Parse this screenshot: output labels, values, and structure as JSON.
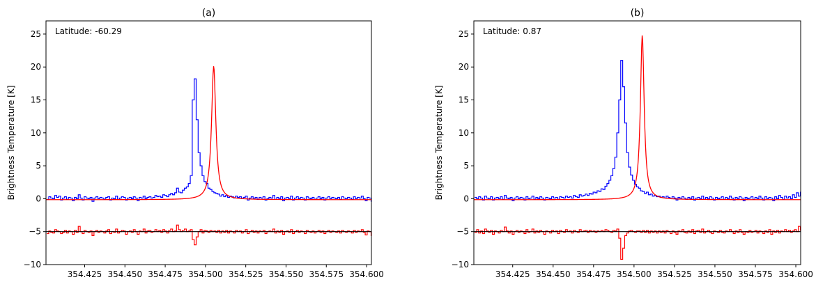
{
  "chart_data": [
    {
      "type": "line",
      "title": "(a)",
      "ylabel": "Brightness Temperature [K]",
      "xlabel": "",
      "annotation": "Latitude: -60.29",
      "xlim": [
        354.401,
        354.603
      ],
      "ylim": [
        -10,
        27
      ],
      "x_ticks": [
        "354.425",
        "354.450",
        "354.475",
        "354.500",
        "354.525",
        "354.550",
        "354.575",
        "354.600"
      ],
      "y_ticks": [
        "−10",
        "−5",
        "0",
        "5",
        "10",
        "15",
        "20",
        "25"
      ],
      "line_center": 354.5051,
      "series": [
        {
          "style": "step",
          "color": "#0000ff",
          "x_start": 354.4015,
          "x_step": 0.00122,
          "values": [
            -0.1,
            0.3,
            0.1,
            0.0,
            0.5,
            0.2,
            0.4,
            -0.2,
            0.1,
            0.3,
            -0.1,
            0.2,
            0.1,
            -0.3,
            0.2,
            0.0,
            0.6,
            0.1,
            -0.2,
            0.3,
            0.1,
            0.0,
            0.2,
            -0.4,
            0.1,
            0.3,
            0.0,
            0.2,
            0.1,
            -0.1,
            0.2,
            0.3,
            -0.2,
            0.1,
            0.0,
            0.4,
            -0.1,
            0.1,
            0.3,
            0.2,
            -0.2,
            0.1,
            0.2,
            0.0,
            0.3,
            0.1,
            -0.3,
            0.2,
            0.1,
            0.4,
            0.0,
            0.2,
            0.3,
            0.1,
            0.2,
            0.5,
            0.3,
            0.4,
            0.2,
            0.6,
            0.5,
            0.3,
            0.6,
            0.8,
            0.6,
            0.9,
            1.6,
            1.0,
            0.9,
            1.3,
            1.6,
            1.8,
            2.3,
            3.5,
            15.0,
            18.2,
            12.0,
            7.0,
            5.0,
            3.5,
            2.6,
            2.3,
            1.6,
            1.4,
            1.1,
            0.9,
            0.8,
            0.7,
            0.4,
            0.6,
            0.3,
            0.5,
            0.2,
            0.4,
            0.3,
            0.1,
            0.4,
            0.2,
            0.3,
            0.0,
            0.2,
            0.4,
            -0.2,
            0.1,
            0.3,
            0.0,
            0.2,
            -0.1,
            0.2,
            0.1,
            0.3,
            -0.2,
            0.0,
            0.2,
            0.1,
            0.5,
            -0.1,
            0.2,
            0.0,
            0.3,
            -0.3,
            0.1,
            0.2,
            0.0,
            0.4,
            -0.2,
            0.1,
            0.3,
            0.0,
            0.2,
            0.1,
            -0.2,
            0.3,
            0.1,
            0.0,
            0.2,
            -0.1,
            0.1,
            0.3,
            0.0,
            0.2,
            -0.2,
            0.1,
            0.3,
            0.0,
            0.2,
            0.1,
            0.0,
            0.2,
            -0.1,
            0.3,
            0.1,
            0.0,
            0.2,
            0.1,
            -0.1,
            0.3,
            0.0,
            0.2,
            0.1,
            0.4,
            0.0,
            -0.3,
            0.2,
            0.1,
            -0.4
          ]
        },
        {
          "style": "line",
          "color": "#ff0000",
          "model": "lorentzian",
          "baseline": -0.15,
          "peak": 20.3,
          "hwhm": 0.0016
        },
        {
          "style": "step",
          "color": "#ff0000",
          "x_start": 354.4015,
          "x_step": 0.00122,
          "values": [
            -5.3,
            -4.9,
            -5.1,
            -5.2,
            -4.7,
            -4.9,
            -5.0,
            -5.3,
            -5.1,
            -4.8,
            -5.2,
            -4.9,
            -5.0,
            -5.4,
            -4.8,
            -5.1,
            -4.2,
            -5.0,
            -5.3,
            -4.8,
            -5.0,
            -5.1,
            -4.9,
            -5.6,
            -5.0,
            -4.8,
            -5.1,
            -4.9,
            -5.0,
            -5.2,
            -4.9,
            -4.7,
            -5.3,
            -5.0,
            -5.1,
            -4.6,
            -5.2,
            -5.0,
            -4.8,
            -4.9,
            -5.4,
            -5.0,
            -4.9,
            -5.1,
            -4.7,
            -5.0,
            -5.4,
            -4.9,
            -5.0,
            -4.6,
            -5.2,
            -4.9,
            -4.8,
            -5.1,
            -5.0,
            -4.7,
            -5.0,
            -4.8,
            -5.1,
            -4.7,
            -4.9,
            -5.2,
            -4.8,
            -4.6,
            -5.0,
            -4.9,
            -4.0,
            -4.7,
            -5.0,
            -4.8,
            -4.6,
            -5.0,
            -4.9,
            -4.7,
            -6.2,
            -7.0,
            -5.8,
            -5.0,
            -4.7,
            -5.2,
            -4.8,
            -4.9,
            -5.1,
            -4.8,
            -5.0,
            -4.9,
            -5.1,
            -4.8,
            -5.2,
            -4.9,
            -5.1,
            -4.8,
            -5.2,
            -4.9,
            -5.0,
            -5.2,
            -4.8,
            -5.0,
            -4.9,
            -5.2,
            -5.0,
            -4.7,
            -5.3,
            -5.0,
            -4.8,
            -5.1,
            -4.9,
            -5.2,
            -4.9,
            -5.0,
            -4.8,
            -5.3,
            -5.0,
            -4.9,
            -5.0,
            -4.6,
            -5.2,
            -4.9,
            -5.1,
            -4.8,
            -5.4,
            -5.0,
            -4.9,
            -5.1,
            -4.7,
            -5.3,
            -5.0,
            -4.8,
            -5.1,
            -4.9,
            -5.0,
            -5.3,
            -4.8,
            -5.0,
            -5.1,
            -4.9,
            -5.2,
            -5.0,
            -4.8,
            -5.1,
            -4.9,
            -5.3,
            -5.0,
            -4.8,
            -5.1,
            -4.9,
            -5.0,
            -5.1,
            -4.9,
            -5.2,
            -4.8,
            -5.0,
            -5.1,
            -4.9,
            -5.0,
            -5.2,
            -4.8,
            -5.1,
            -4.9,
            -5.0,
            -4.7,
            -5.1,
            -5.5,
            -4.9,
            -5.0,
            -5.6
          ]
        },
        {
          "style": "hline",
          "color": "#000000",
          "y": -5
        }
      ]
    },
    {
      "type": "line",
      "title": "(b)",
      "ylabel": "Brightness Temperature [K]",
      "xlabel": "",
      "annotation": "Latitude: 0.87",
      "xlim": [
        354.401,
        354.603
      ],
      "ylim": [
        -10,
        27
      ],
      "x_ticks": [
        "354.425",
        "354.450",
        "354.475",
        "354.500",
        "354.525",
        "354.550",
        "354.575",
        "354.600"
      ],
      "y_ticks": [
        "−10",
        "−5",
        "0",
        "5",
        "10",
        "15",
        "20",
        "25"
      ],
      "line_center": 354.5051,
      "series": [
        {
          "style": "step",
          "color": "#0000ff",
          "x_start": 354.4015,
          "x_step": 0.00122,
          "values": [
            0.2,
            0.0,
            0.3,
            0.1,
            -0.2,
            0.4,
            0.1,
            0.0,
            0.3,
            -0.2,
            0.1,
            0.2,
            0.0,
            0.3,
            -0.1,
            0.5,
            0.1,
            0.0,
            0.2,
            -0.3,
            0.1,
            0.3,
            0.0,
            0.2,
            0.1,
            -0.2,
            0.3,
            0.0,
            0.1,
            0.4,
            -0.1,
            0.2,
            0.0,
            0.3,
            0.1,
            -0.2,
            0.2,
            0.1,
            0.0,
            0.3,
            0.1,
            0.2,
            -0.1,
            0.3,
            0.2,
            0.1,
            0.4,
            0.2,
            0.3,
            0.1,
            0.5,
            0.3,
            0.2,
            0.6,
            0.4,
            0.5,
            0.7,
            0.5,
            0.8,
            0.7,
            1.0,
            0.9,
            1.2,
            1.1,
            1.5,
            1.4,
            1.9,
            2.3,
            2.8,
            3.5,
            4.6,
            6.3,
            10.0,
            15.0,
            21.0,
            17.0,
            11.5,
            7.0,
            4.8,
            3.6,
            2.8,
            2.2,
            1.8,
            1.6,
            1.2,
            1.1,
            0.8,
            1.0,
            0.6,
            0.7,
            0.4,
            0.5,
            0.3,
            0.4,
            0.2,
            0.3,
            0.1,
            0.4,
            0.2,
            0.0,
            0.3,
            0.1,
            -0.2,
            0.2,
            0.0,
            0.3,
            0.1,
            -0.1,
            0.2,
            0.0,
            0.3,
            -0.2,
            0.1,
            0.2,
            0.0,
            0.4,
            -0.1,
            0.2,
            0.0,
            0.3,
            0.1,
            -0.2,
            0.2,
            0.0,
            0.1,
            0.3,
            -0.1,
            0.2,
            0.0,
            0.4,
            0.1,
            -0.2,
            0.2,
            0.0,
            0.3,
            0.1,
            -0.3,
            0.2,
            0.0,
            0.1,
            0.3,
            -0.1,
            0.2,
            0.0,
            0.4,
            0.1,
            -0.2,
            0.3,
            0.0,
            0.2,
            0.1,
            -0.3,
            0.3,
            0.0,
            0.5,
            0.2,
            -0.1,
            0.4,
            0.1,
            0.3,
            0.0,
            0.6,
            0.2,
            0.9,
            0.4,
            1.0
          ]
        },
        {
          "style": "line",
          "color": "#ff0000",
          "model": "lorentzian",
          "baseline": -0.15,
          "peak": 25.0,
          "hwhm": 0.0014
        },
        {
          "style": "step",
          "color": "#ff0000",
          "x_start": 354.4015,
          "x_step": 0.00122,
          "values": [
            -5.1,
            -4.7,
            -5.2,
            -4.9,
            -5.3,
            -4.6,
            -4.9,
            -5.1,
            -4.8,
            -5.4,
            -4.9,
            -5.0,
            -5.2,
            -4.8,
            -5.0,
            -4.3,
            -4.9,
            -5.2,
            -4.9,
            -5.4,
            -5.0,
            -4.8,
            -5.1,
            -4.9,
            -5.0,
            -5.3,
            -4.7,
            -5.1,
            -5.0,
            -4.6,
            -5.2,
            -4.9,
            -5.1,
            -4.8,
            -5.0,
            -5.4,
            -4.9,
            -5.0,
            -5.2,
            -4.8,
            -5.0,
            -4.9,
            -5.3,
            -4.8,
            -5.0,
            -5.1,
            -4.7,
            -5.0,
            -4.9,
            -5.2,
            -4.8,
            -5.0,
            -5.1,
            -4.7,
            -5.0,
            -4.9,
            -4.8,
            -5.1,
            -4.8,
            -5.0,
            -4.9,
            -5.1,
            -4.9,
            -5.0,
            -4.8,
            -5.0,
            -4.7,
            -4.8,
            -5.0,
            -5.1,
            -4.8,
            -4.9,
            -4.6,
            -6.0,
            -9.2,
            -7.5,
            -5.6,
            -5.2,
            -4.9,
            -4.8,
            -5.0,
            -5.1,
            -4.9,
            -4.9,
            -5.1,
            -4.8,
            -5.1,
            -4.8,
            -5.2,
            -4.9,
            -5.1,
            -4.9,
            -5.2,
            -4.9,
            -5.1,
            -4.9,
            -5.2,
            -4.8,
            -5.0,
            -5.3,
            -4.9,
            -5.1,
            -5.4,
            -4.9,
            -5.0,
            -4.7,
            -5.1,
            -5.2,
            -4.9,
            -5.1,
            -4.7,
            -5.3,
            -4.9,
            -4.8,
            -5.1,
            -4.6,
            -5.2,
            -5.0,
            -4.8,
            -5.1,
            -5.3,
            -4.9,
            -5.0,
            -5.1,
            -4.8,
            -5.1,
            -5.2,
            -4.9,
            -5.0,
            -4.7,
            -5.0,
            -5.3,
            -4.9,
            -5.1,
            -4.7,
            -5.1,
            -5.4,
            -5.0,
            -5.1,
            -4.8,
            -5.1,
            -5.0,
            -4.8,
            -5.2,
            -4.9,
            -5.0,
            -5.3,
            -4.9,
            -5.1,
            -4.7,
            -5.4,
            -4.9,
            -5.1,
            -4.8,
            -5.2,
            -4.9,
            -5.0,
            -4.7,
            -5.0,
            -4.8,
            -5.1,
            -4.9,
            -4.7,
            -5.0,
            -4.2,
            -4.8
          ]
        },
        {
          "style": "hline",
          "color": "#000000",
          "y": -5
        }
      ]
    }
  ]
}
